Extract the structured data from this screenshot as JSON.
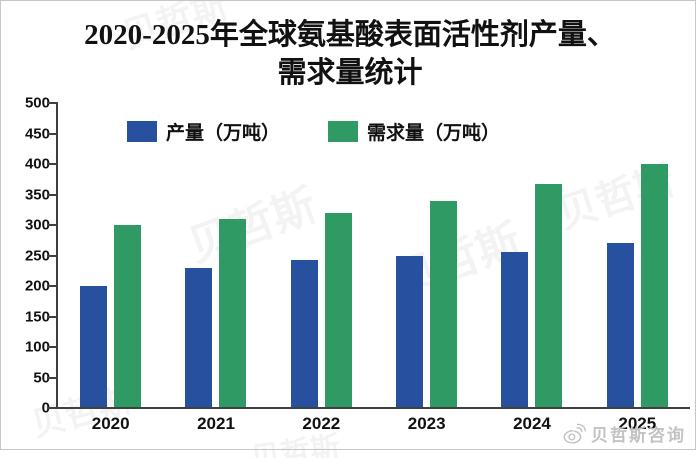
{
  "chart_data": {
    "type": "bar",
    "title": "2020-2025年全球氨基酸表面活性剂产量、需求量统计",
    "title_lines": [
      "2020-2025年全球氨基酸表面活性剂产量、",
      "需求量统计"
    ],
    "categories": [
      "2020",
      "2021",
      "2022",
      "2023",
      "2024",
      "2025"
    ],
    "series": [
      {
        "name": "产量（万吨）",
        "color": "#27519e",
        "values": [
          200,
          230,
          242,
          250,
          255,
          270
        ]
      },
      {
        "name": "需求量（万吨）",
        "color": "#2f9a63",
        "values": [
          300,
          310,
          320,
          340,
          368,
          400
        ]
      }
    ],
    "xlabel": "",
    "ylabel": "",
    "ylim": [
      0,
      500
    ],
    "yticks": [
      0,
      50,
      100,
      150,
      200,
      250,
      300,
      350,
      400,
      450,
      500
    ],
    "grid": false,
    "legend_position": "top-inside"
  },
  "watermark": {
    "footer_text": "贝哲斯咨询",
    "ghost_text": "贝哲斯"
  },
  "colors": {
    "axis": "#404040",
    "frame_border": "#c6c6c6",
    "watermark_gray": "#c3c3c3"
  }
}
